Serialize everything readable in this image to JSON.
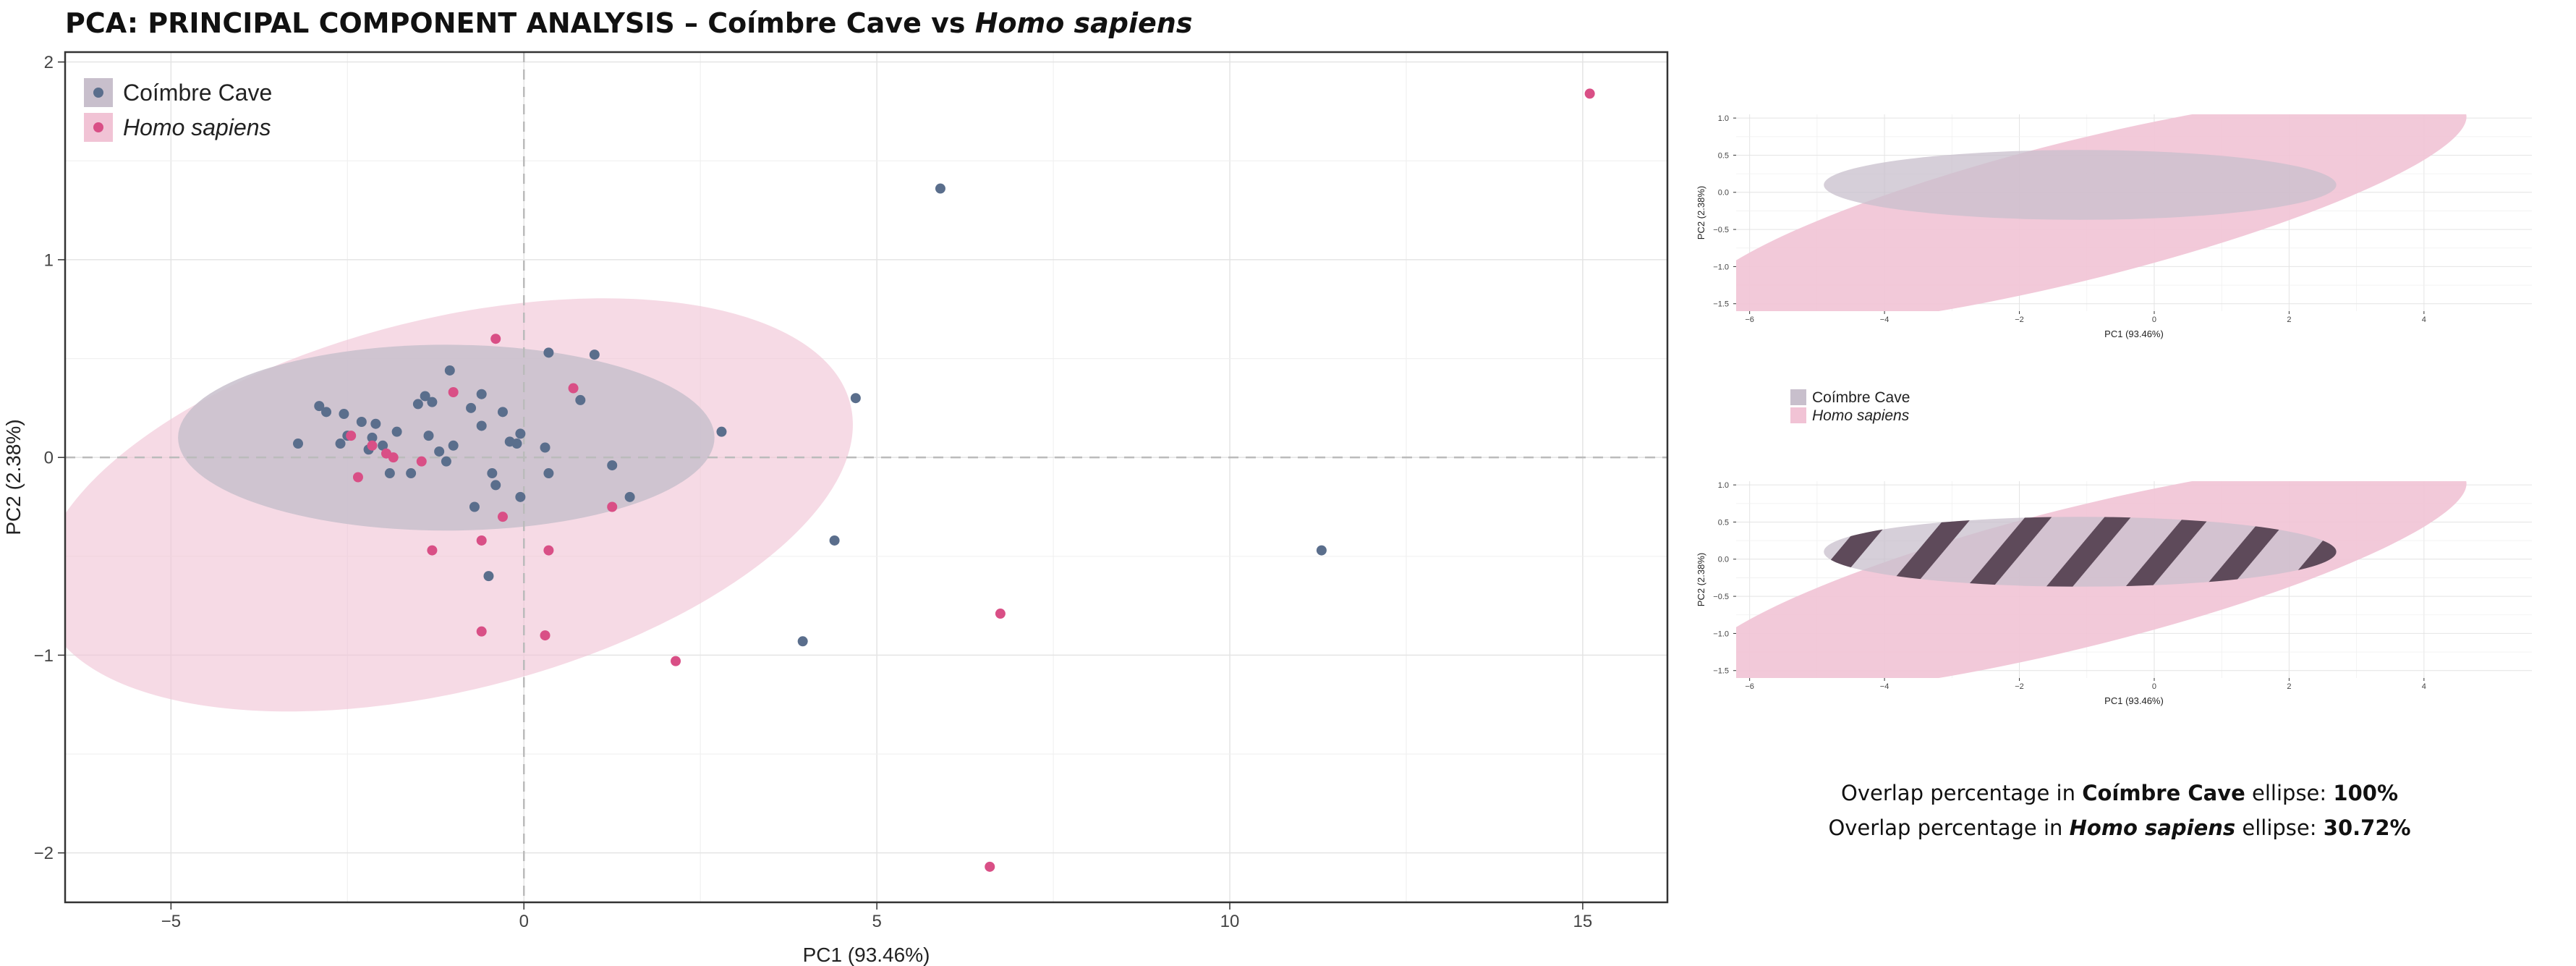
{
  "title": {
    "prefix": "PCA: PRINCIPAL COMPONENT ANALYSIS – Coímbre Cave vs ",
    "italic": "Homo sapiens"
  },
  "colors": {
    "coimbre": "#5a6e8c",
    "homo": "#d94f86",
    "homo_ellipse": "#f1c3d5",
    "coimbre_ellipse": "#c8bfcc",
    "hatch": "#5e4a5a"
  },
  "chart_data": [
    {
      "type": "scatter",
      "title": "",
      "xlabel": "PC1 (93.46%)",
      "ylabel": "PC2 (2.38%)",
      "xlim": [
        -6.5,
        16.2
      ],
      "ylim": [
        -2.25,
        2.05
      ],
      "x_ticks": [
        -5,
        0,
        5,
        10,
        15
      ],
      "y_ticks": [
        -2,
        -1,
        0,
        1,
        2
      ],
      "x_tick_labels": [
        "−5",
        "0",
        "5",
        "10",
        "15"
      ],
      "y_tick_labels": [
        "−2",
        "−1",
        "0",
        "1",
        "2"
      ],
      "grid": true,
      "legend": "top-left",
      "series": [
        {
          "name": "Coímbre Cave",
          "ellipse": {
            "cx": -1.1,
            "cy": 0.1,
            "rx": 3.8,
            "ry": 0.47,
            "angle": 0
          },
          "points": [
            [
              -3.2,
              0.07
            ],
            [
              -2.9,
              0.26
            ],
            [
              -2.8,
              0.23
            ],
            [
              -2.6,
              0.07
            ],
            [
              -2.5,
              0.11
            ],
            [
              -2.55,
              0.22
            ],
            [
              -2.3,
              0.18
            ],
            [
              -2.2,
              0.04
            ],
            [
              -2.15,
              0.1
            ],
            [
              -2.1,
              0.17
            ],
            [
              -2.0,
              0.06
            ],
            [
              -1.9,
              -0.08
            ],
            [
              -1.8,
              0.13
            ],
            [
              -1.6,
              -0.08
            ],
            [
              -1.5,
              0.27
            ],
            [
              -1.4,
              0.31
            ],
            [
              -1.3,
              0.28
            ],
            [
              -1.35,
              0.11
            ],
            [
              -1.2,
              0.03
            ],
            [
              -1.1,
              -0.02
            ],
            [
              -1.0,
              0.06
            ],
            [
              -1.05,
              0.44
            ],
            [
              -0.7,
              -0.25
            ],
            [
              -0.75,
              0.25
            ],
            [
              -0.6,
              0.32
            ],
            [
              -0.6,
              0.16
            ],
            [
              -0.5,
              -0.6
            ],
            [
              -0.4,
              -0.14
            ],
            [
              -0.45,
              -0.08
            ],
            [
              -0.3,
              0.23
            ],
            [
              -0.2,
              0.08
            ],
            [
              -0.05,
              0.12
            ],
            [
              -0.05,
              -0.2
            ],
            [
              -0.1,
              0.07
            ],
            [
              0.3,
              0.05
            ],
            [
              0.35,
              -0.08
            ],
            [
              0.35,
              0.53
            ],
            [
              0.8,
              0.29
            ],
            [
              1.0,
              0.52
            ],
            [
              1.25,
              -0.04
            ],
            [
              1.5,
              -0.2
            ],
            [
              2.8,
              0.13
            ],
            [
              4.7,
              0.3
            ],
            [
              4.4,
              -0.42
            ],
            [
              3.95,
              -0.93
            ],
            [
              5.9,
              1.36
            ],
            [
              11.3,
              -0.47
            ]
          ]
        },
        {
          "name": "Homo sapiens",
          "ellipse": {
            "cx": -1.1,
            "cy": -0.24,
            "rx": 5.9,
            "ry": 0.94,
            "angle": -14
          },
          "points": [
            [
              -2.45,
              0.11
            ],
            [
              -2.35,
              -0.1
            ],
            [
              -2.15,
              0.06
            ],
            [
              -1.95,
              0.02
            ],
            [
              -1.85,
              0.0
            ],
            [
              -1.45,
              -0.02
            ],
            [
              -1.3,
              -0.47
            ],
            [
              -1.0,
              0.33
            ],
            [
              -0.6,
              -0.42
            ],
            [
              -0.6,
              -0.88
            ],
            [
              -0.4,
              0.6
            ],
            [
              -0.3,
              -0.3
            ],
            [
              0.3,
              -0.9
            ],
            [
              0.35,
              -0.47
            ],
            [
              0.7,
              0.35
            ],
            [
              1.25,
              -0.25
            ],
            [
              2.15,
              -1.03
            ],
            [
              6.6,
              -2.07
            ],
            [
              6.75,
              -0.79
            ],
            [
              15.1,
              1.84
            ]
          ]
        }
      ]
    },
    {
      "type": "scatter",
      "title": "",
      "xlabel": "PC1 (93.46%)",
      "ylabel": "PC2 (2.38%)",
      "xlim": [
        -6.2,
        5.6
      ],
      "ylim": [
        -1.6,
        1.05
      ],
      "x_ticks": [
        -6,
        -4,
        -2,
        0,
        2,
        4
      ],
      "y_ticks": [
        1.0,
        0.5,
        0.0,
        -0.5,
        -1.0,
        -1.5
      ],
      "x_tick_labels": [
        "−6",
        "−4",
        "−2",
        "0",
        "2",
        "4"
      ],
      "y_tick_labels": [
        "1.0",
        "0.5",
        "0.0",
        "−0.5",
        "−1.0",
        "−1.5"
      ],
      "grid": true,
      "legend": "below",
      "series": [
        {
          "name": "Coímbre Cave",
          "ellipse": {
            "cx": -1.1,
            "cy": 0.1,
            "rx": 3.8,
            "ry": 0.47,
            "angle": 0
          }
        },
        {
          "name": "Homo sapiens",
          "ellipse": {
            "cx": -1.1,
            "cy": -0.24,
            "rx": 5.9,
            "ry": 0.94,
            "angle": -14
          }
        }
      ]
    },
    {
      "type": "scatter",
      "title": "",
      "xlabel": "PC1 (93.46%)",
      "ylabel": "PC2 (2.38%)",
      "xlim": [
        -6.2,
        5.6
      ],
      "ylim": [
        -1.6,
        1.05
      ],
      "x_ticks": [
        -6,
        -4,
        -2,
        0,
        2,
        4
      ],
      "y_ticks": [
        1.0,
        0.5,
        0.0,
        -0.5,
        -1.0,
        -1.5
      ],
      "x_tick_labels": [
        "−6",
        "−4",
        "−2",
        "0",
        "2",
        "4"
      ],
      "y_tick_labels": [
        "1.0",
        "0.5",
        "0.0",
        "−0.5",
        "−1.0",
        "−1.5"
      ],
      "grid": true,
      "overlap_hatched": true,
      "series": [
        {
          "name": "Coímbre Cave",
          "ellipse": {
            "cx": -1.1,
            "cy": 0.1,
            "rx": 3.8,
            "ry": 0.47,
            "angle": 0
          }
        },
        {
          "name": "Homo sapiens",
          "ellipse": {
            "cx": -1.1,
            "cy": -0.24,
            "rx": 5.9,
            "ry": 0.94,
            "angle": -14
          }
        }
      ]
    }
  ],
  "legend_small": {
    "coimbre": "Coímbre Cave",
    "homo": "Homo sapiens"
  },
  "summary": {
    "line1_prefix": "Overlap percentage in ",
    "line1_group": "Coímbre Cave",
    "line1_suffix": " ellipse: ",
    "line1_value": "100%",
    "line2_prefix": "Overlap percentage in ",
    "line2_group": "Homo sapiens",
    "line2_suffix": " ellipse: ",
    "line2_value": "30.72%"
  }
}
